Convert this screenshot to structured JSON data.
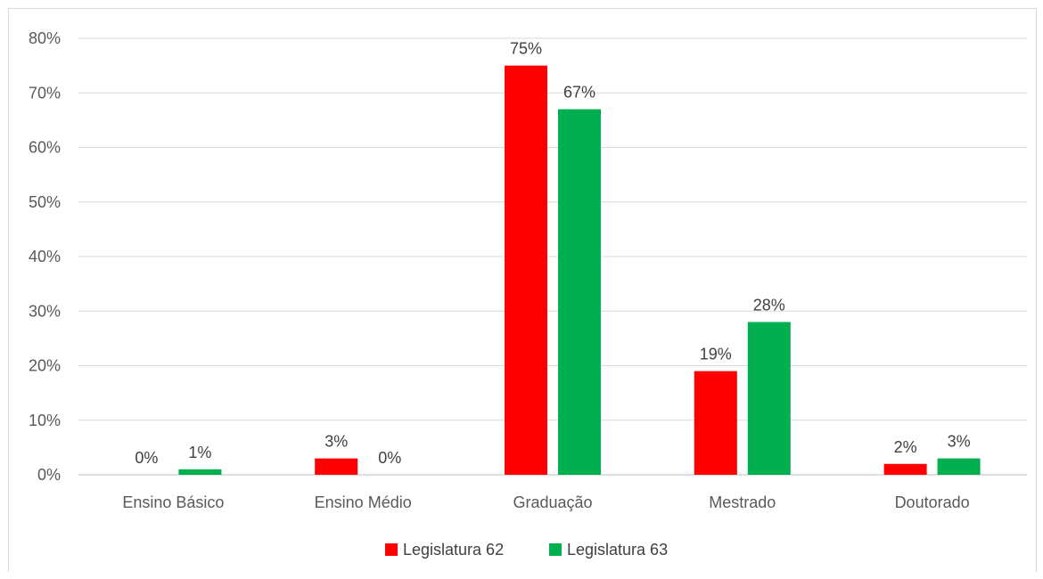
{
  "chart_data": {
    "type": "bar",
    "categories": [
      "Ensino Básico",
      "Ensino Médio",
      "Graduação",
      "Mestrado",
      "Doutorado"
    ],
    "series": [
      {
        "name": "Legislatura 62",
        "color": "#ff0000",
        "values": [
          0,
          3,
          75,
          19,
          2
        ],
        "labels": [
          "0%",
          "3%",
          "75%",
          "19%",
          "2%"
        ]
      },
      {
        "name": "Legislatura 63",
        "color": "#00b050",
        "values": [
          1,
          0,
          67,
          28,
          3
        ],
        "labels": [
          "1%",
          "0%",
          "67%",
          "28%",
          "3%"
        ]
      }
    ],
    "y_ticks": [
      0,
      10,
      20,
      30,
      40,
      50,
      60,
      70,
      80
    ],
    "y_tick_labels": [
      "0%",
      "10%",
      "20%",
      "30%",
      "40%",
      "50%",
      "60%",
      "70%",
      "80%"
    ],
    "ylim": [
      0,
      80
    ],
    "grid": true,
    "legend_position": "bottom"
  }
}
